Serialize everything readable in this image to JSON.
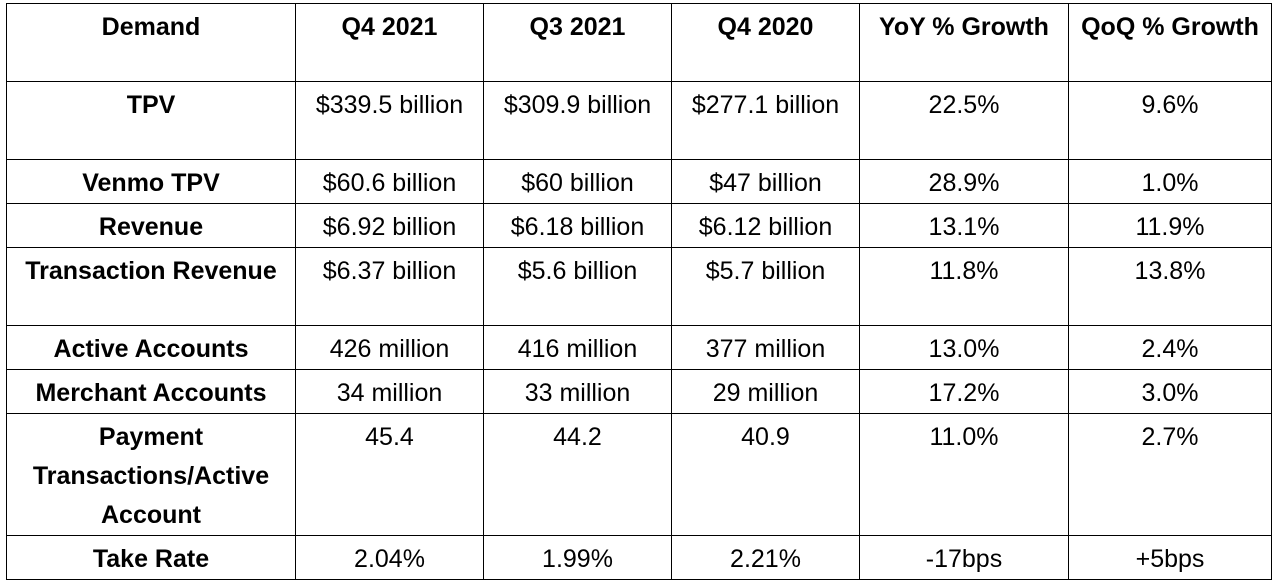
{
  "headers": [
    "Demand",
    "Q4 2021",
    "Q3 2021",
    "Q4 2020",
    "YoY % Growth",
    "QoQ % Growth"
  ],
  "rows": [
    {
      "metric": "TPV",
      "q4_2021": "$339.5 billion",
      "q3_2021": "$309.9 billion",
      "q4_2020": "$277.1 billion",
      "yoy": "22.5%",
      "qoq": "9.6%"
    },
    {
      "metric": "Venmo TPV",
      "q4_2021": "$60.6 billion",
      "q3_2021": "$60 billion",
      "q4_2020": "$47 billion",
      "yoy": "28.9%",
      "qoq": "1.0%"
    },
    {
      "metric": "Revenue",
      "q4_2021": "$6.92 billion",
      "q3_2021": "$6.18 billion",
      "q4_2020": "$6.12 billion",
      "yoy": "13.1%",
      "qoq": "11.9%"
    },
    {
      "metric": "Transaction Revenue",
      "q4_2021": "$6.37 billion",
      "q3_2021": "$5.6 billion",
      "q4_2020": "$5.7 billion",
      "yoy": "11.8%",
      "qoq": "13.8%"
    },
    {
      "metric": "Active Accounts",
      "q4_2021": "426 million",
      "q3_2021": "416 million",
      "q4_2020": "377 million",
      "yoy": "13.0%",
      "qoq": "2.4%"
    },
    {
      "metric": "Merchant Accounts",
      "q4_2021": "34 million",
      "q3_2021": "33 million",
      "q4_2020": "29 million",
      "yoy": "17.2%",
      "qoq": "3.0%"
    },
    {
      "metric": "Payment Transactions/Active Account",
      "q4_2021": "45.4",
      "q3_2021": "44.2",
      "q4_2020": "40.9",
      "yoy": "11.0%",
      "qoq": "2.7%"
    },
    {
      "metric": "Take Rate",
      "q4_2021": "2.04%",
      "q3_2021": "1.99%",
      "q4_2020": "2.21%",
      "yoy": "-17bps",
      "qoq": "+5bps"
    }
  ]
}
